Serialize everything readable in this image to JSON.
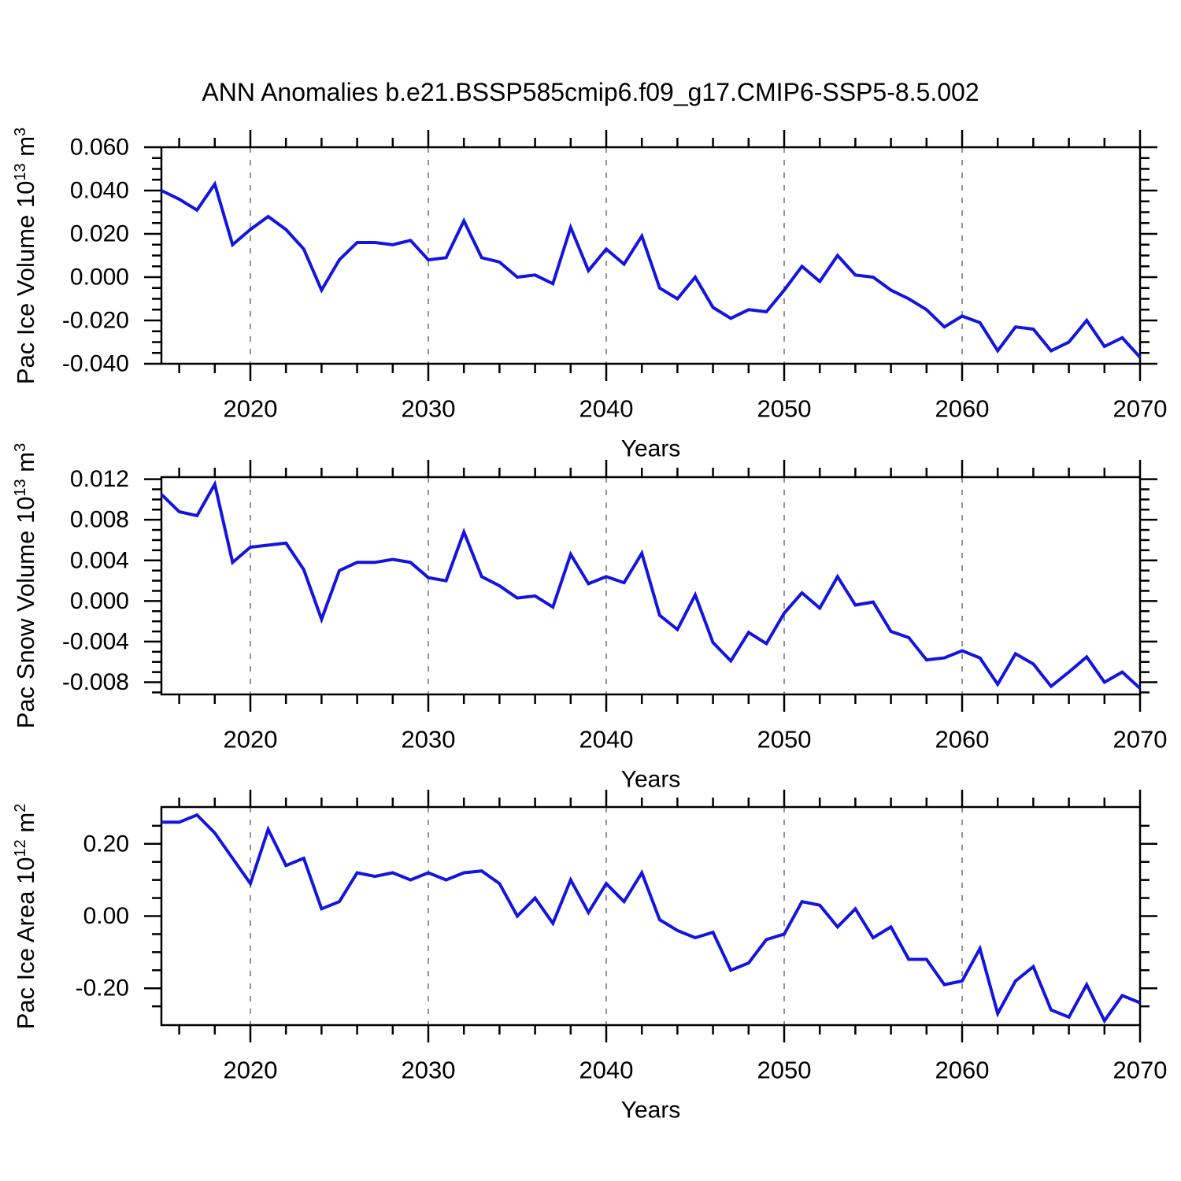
{
  "title": "ANN Anomalies b.e21.BSSP585cmip6.f09_g17.CMIP6-SSP5-8.5.002",
  "panels_meta": [
    {
      "ylabel": {
        "base": "Pac Ice Volume 10",
        "exp": "13",
        "unit": " m",
        "unit_exp": "3"
      }
    },
    {
      "ylabel": {
        "base": "Pac Snow Volume 10",
        "exp": "13",
        "unit": " m",
        "unit_exp": "3"
      }
    },
    {
      "ylabel": {
        "base": "Pac Ice Area 10",
        "exp": "12",
        "unit": " m",
        "unit_exp": "2"
      }
    }
  ],
  "chart_data": {
    "type": "line",
    "title": "ANN Anomalies b.e21.BSSP585cmip6.f09_g17.CMIP6-SSP5-8.5.002",
    "xlabel": "Years",
    "legend": "none",
    "grid": "vertical-dashed-gray-at-decades",
    "line_color": "#1414e0",
    "grid_color": "#949494",
    "axis_color": "#000000",
    "xlim": [
      2015,
      2070
    ],
    "x_major_ticks": [
      2020,
      2030,
      2040,
      2050,
      2060,
      2070
    ],
    "x_major_tick_labels": [
      "2020",
      "2030",
      "2040",
      "2050",
      "2060",
      "2070"
    ],
    "x_minor_step": 2,
    "grid_vlines": [
      2020,
      2030,
      2040,
      2050,
      2060
    ],
    "x": [
      2015,
      2016,
      2017,
      2018,
      2019,
      2020,
      2021,
      2022,
      2023,
      2024,
      2025,
      2026,
      2027,
      2028,
      2029,
      2030,
      2031,
      2032,
      2033,
      2034,
      2035,
      2036,
      2037,
      2038,
      2039,
      2040,
      2041,
      2042,
      2043,
      2044,
      2045,
      2046,
      2047,
      2048,
      2049,
      2050,
      2051,
      2052,
      2053,
      2054,
      2055,
      2056,
      2057,
      2058,
      2059,
      2060,
      2061,
      2062,
      2063,
      2064,
      2065,
      2066,
      2067,
      2068,
      2069,
      2070
    ],
    "panels": [
      {
        "ylabel_text": "Pac Ice Volume 10^13 m^3",
        "ylim": [
          -0.04,
          0.06
        ],
        "ytick_values": [
          0.06,
          0.04,
          0.02,
          0.0,
          -0.02,
          -0.04
        ],
        "ytick_labels": [
          "0.060",
          "0.040",
          "0.020",
          "0.000",
          "-0.020",
          "-0.040"
        ],
        "y_minor_step": 0.005,
        "values": [
          0.04,
          0.036,
          0.031,
          0.043,
          0.015,
          0.022,
          0.028,
          0.022,
          0.013,
          -0.006,
          0.008,
          0.016,
          0.016,
          0.015,
          0.017,
          0.008,
          0.009,
          0.026,
          0.009,
          0.007,
          0.0,
          0.001,
          -0.003,
          0.023,
          0.003,
          0.013,
          0.006,
          0.019,
          -0.005,
          -0.01,
          0.0,
          -0.014,
          -0.019,
          -0.015,
          -0.016,
          -0.006,
          0.005,
          -0.002,
          0.01,
          0.001,
          0.0,
          -0.006,
          -0.01,
          -0.015,
          -0.023,
          -0.018,
          -0.021,
          -0.034,
          -0.023,
          -0.024,
          -0.034,
          -0.03,
          -0.02,
          -0.032,
          -0.028,
          -0.037
        ]
      },
      {
        "ylabel_text": "Pac Snow Volume 10^13 m^3",
        "ylim": [
          -0.0092,
          0.0122
        ],
        "ytick_values": [
          0.012,
          0.008,
          0.004,
          0.0,
          -0.004,
          -0.008
        ],
        "ytick_labels": [
          "0.012",
          "0.008",
          "0.004",
          "0.000",
          "-0.004",
          "-0.008"
        ],
        "y_minor_step": 0.001,
        "values": [
          0.0105,
          0.0088,
          0.0084,
          0.0115,
          0.0038,
          0.0053,
          0.0055,
          0.0057,
          0.0031,
          -0.0018,
          0.003,
          0.0038,
          0.0038,
          0.0041,
          0.0038,
          0.0023,
          0.002,
          0.0068,
          0.0024,
          0.0015,
          0.0003,
          0.0005,
          -0.0006,
          0.0046,
          0.0017,
          0.0024,
          0.0018,
          0.0047,
          -0.0014,
          -0.0028,
          0.0006,
          -0.0041,
          -0.0059,
          -0.0031,
          -0.0042,
          -0.0012,
          0.0008,
          -0.0007,
          0.0024,
          -0.0004,
          -0.0001,
          -0.003,
          -0.0036,
          -0.0058,
          -0.0056,
          -0.0049,
          -0.0056,
          -0.0082,
          -0.0052,
          -0.0062,
          -0.0084,
          -0.007,
          -0.0055,
          -0.008,
          -0.007,
          -0.0086
        ]
      },
      {
        "ylabel_text": "Pac Ice Area 10^12 m^2",
        "ylim": [
          -0.302,
          0.302
        ],
        "ytick_values": [
          0.2,
          0.0,
          -0.2
        ],
        "ytick_labels": [
          "0.20",
          "0.00",
          "-0.20"
        ],
        "y_minor_step": 0.05,
        "values": [
          0.26,
          0.26,
          0.28,
          0.23,
          0.16,
          0.09,
          0.24,
          0.14,
          0.16,
          0.02,
          0.04,
          0.12,
          0.11,
          0.12,
          0.1,
          0.12,
          0.1,
          0.12,
          0.125,
          0.09,
          0.0,
          0.05,
          -0.02,
          0.1,
          0.01,
          0.09,
          0.04,
          0.12,
          -0.01,
          -0.04,
          -0.06,
          -0.045,
          -0.15,
          -0.13,
          -0.065,
          -0.05,
          0.04,
          0.03,
          -0.03,
          0.02,
          -0.06,
          -0.03,
          -0.12,
          -0.12,
          -0.19,
          -0.18,
          -0.09,
          -0.27,
          -0.18,
          -0.14,
          -0.26,
          -0.28,
          -0.19,
          -0.29,
          -0.22,
          -0.24
        ]
      }
    ]
  }
}
